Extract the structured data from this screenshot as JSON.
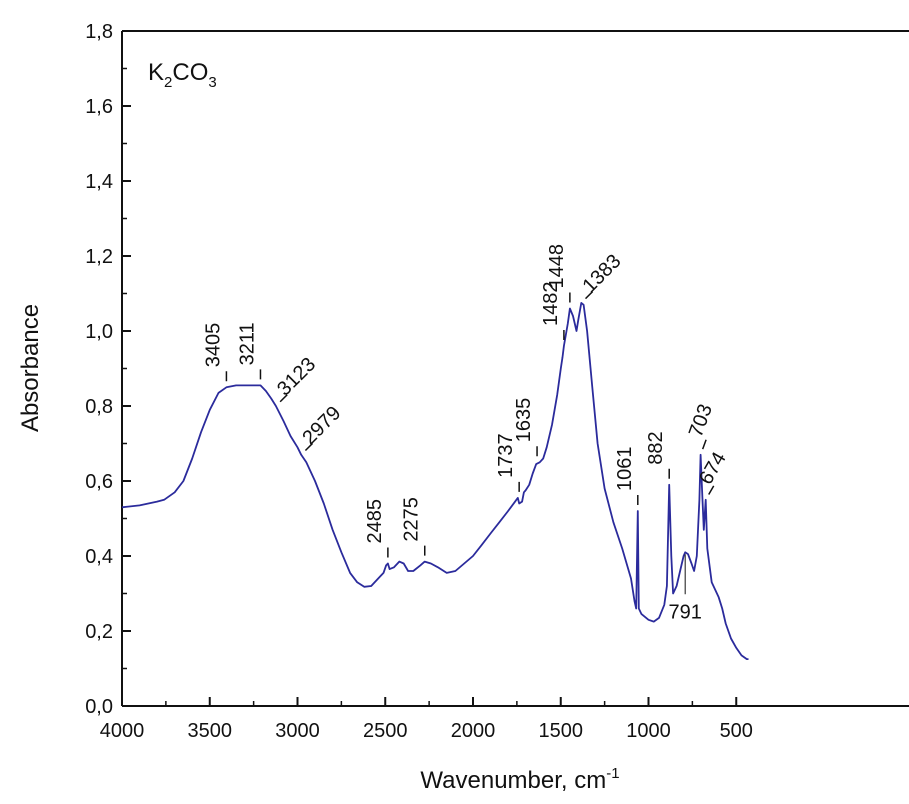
{
  "chart_data": {
    "type": "line",
    "title": "",
    "sample_label": {
      "base": "K",
      "sub1": "2",
      "mid": "CO",
      "sub2": "3"
    },
    "xlabel": "Wavenumber, cm",
    "xlabel_sup": "-1",
    "ylabel": "Absorbance",
    "xlim": [
      4000,
      430
    ],
    "ylim": [
      0.0,
      1.8
    ],
    "x_reversed": true,
    "grid": false,
    "x_ticks": [
      {
        "value": 4000,
        "label": "4000"
      },
      {
        "value": 3500,
        "label": "3500"
      },
      {
        "value": 3000,
        "label": "3000"
      },
      {
        "value": 2500,
        "label": "2500"
      },
      {
        "value": 2000,
        "label": "2000"
      },
      {
        "value": 1500,
        "label": "1500"
      },
      {
        "value": 1000,
        "label": "1000"
      },
      {
        "value": 500,
        "label": "500"
      }
    ],
    "y_ticks": [
      {
        "value": 0.0,
        "label": "0,0"
      },
      {
        "value": 0.2,
        "label": "0,2"
      },
      {
        "value": 0.4,
        "label": "0,4"
      },
      {
        "value": 0.6,
        "label": "0,6"
      },
      {
        "value": 0.8,
        "label": "0,8"
      },
      {
        "value": 1.0,
        "label": "1,0"
      },
      {
        "value": 1.2,
        "label": "1,2"
      },
      {
        "value": 1.4,
        "label": "1,4"
      },
      {
        "value": 1.6,
        "label": "1,6"
      },
      {
        "value": 1.8,
        "label": "1,8"
      }
    ],
    "series": [
      {
        "color": "#2b2b9c",
        "points": [
          [
            4000,
            0.53
          ],
          [
            3900,
            0.535
          ],
          [
            3800,
            0.545
          ],
          [
            3760,
            0.55
          ],
          [
            3700,
            0.57
          ],
          [
            3650,
            0.6
          ],
          [
            3600,
            0.66
          ],
          [
            3550,
            0.73
          ],
          [
            3500,
            0.79
          ],
          [
            3450,
            0.835
          ],
          [
            3405,
            0.85
          ],
          [
            3350,
            0.855
          ],
          [
            3300,
            0.855
          ],
          [
            3250,
            0.855
          ],
          [
            3211,
            0.855
          ],
          [
            3180,
            0.84
          ],
          [
            3150,
            0.82
          ],
          [
            3123,
            0.8
          ],
          [
            3080,
            0.76
          ],
          [
            3040,
            0.72
          ],
          [
            3000,
            0.69
          ],
          [
            2979,
            0.67
          ],
          [
            2950,
            0.65
          ],
          [
            2900,
            0.6
          ],
          [
            2850,
            0.54
          ],
          [
            2800,
            0.47
          ],
          [
            2750,
            0.41
          ],
          [
            2700,
            0.355
          ],
          [
            2660,
            0.33
          ],
          [
            2620,
            0.318
          ],
          [
            2580,
            0.32
          ],
          [
            2540,
            0.34
          ],
          [
            2510,
            0.355
          ],
          [
            2495,
            0.375
          ],
          [
            2485,
            0.38
          ],
          [
            2475,
            0.365
          ],
          [
            2450,
            0.37
          ],
          [
            2420,
            0.385
          ],
          [
            2395,
            0.38
          ],
          [
            2370,
            0.36
          ],
          [
            2340,
            0.36
          ],
          [
            2300,
            0.375
          ],
          [
            2275,
            0.385
          ],
          [
            2240,
            0.38
          ],
          [
            2200,
            0.37
          ],
          [
            2150,
            0.355
          ],
          [
            2100,
            0.36
          ],
          [
            2050,
            0.38
          ],
          [
            2000,
            0.4
          ],
          [
            1950,
            0.43
          ],
          [
            1900,
            0.46
          ],
          [
            1850,
            0.49
          ],
          [
            1800,
            0.52
          ],
          [
            1760,
            0.545
          ],
          [
            1745,
            0.555
          ],
          [
            1737,
            0.54
          ],
          [
            1720,
            0.545
          ],
          [
            1710,
            0.57
          ],
          [
            1700,
            0.575
          ],
          [
            1680,
            0.59
          ],
          [
            1660,
            0.62
          ],
          [
            1640,
            0.645
          ],
          [
            1620,
            0.65
          ],
          [
            1600,
            0.66
          ],
          [
            1580,
            0.69
          ],
          [
            1550,
            0.75
          ],
          [
            1520,
            0.83
          ],
          [
            1500,
            0.9
          ],
          [
            1490,
            0.93
          ],
          [
            1482,
            0.96
          ],
          [
            1460,
            1.02
          ],
          [
            1448,
            1.06
          ],
          [
            1430,
            1.04
          ],
          [
            1410,
            1.0
          ],
          [
            1400,
            1.03
          ],
          [
            1383,
            1.075
          ],
          [
            1370,
            1.07
          ],
          [
            1350,
            1.0
          ],
          [
            1320,
            0.85
          ],
          [
            1290,
            0.7
          ],
          [
            1250,
            0.58
          ],
          [
            1200,
            0.49
          ],
          [
            1150,
            0.42
          ],
          [
            1100,
            0.34
          ],
          [
            1080,
            0.28
          ],
          [
            1070,
            0.26
          ],
          [
            1061,
            0.52
          ],
          [
            1055,
            0.26
          ],
          [
            1040,
            0.245
          ],
          [
            1000,
            0.23
          ],
          [
            970,
            0.225
          ],
          [
            940,
            0.235
          ],
          [
            910,
            0.27
          ],
          [
            895,
            0.32
          ],
          [
            882,
            0.59
          ],
          [
            870,
            0.4
          ],
          [
            860,
            0.3
          ],
          [
            840,
            0.32
          ],
          [
            820,
            0.36
          ],
          [
            800,
            0.4
          ],
          [
            791,
            0.41
          ],
          [
            775,
            0.405
          ],
          [
            755,
            0.38
          ],
          [
            740,
            0.36
          ],
          [
            725,
            0.4
          ],
          [
            710,
            0.55
          ],
          [
            703,
            0.67
          ],
          [
            695,
            0.58
          ],
          [
            685,
            0.47
          ],
          [
            674,
            0.55
          ],
          [
            665,
            0.42
          ],
          [
            640,
            0.33
          ],
          [
            600,
            0.29
          ],
          [
            580,
            0.26
          ],
          [
            560,
            0.22
          ],
          [
            530,
            0.18
          ],
          [
            500,
            0.155
          ],
          [
            470,
            0.135
          ],
          [
            440,
            0.125
          ],
          [
            430,
            0.125
          ]
        ]
      }
    ],
    "annotations": [
      {
        "text": "3405",
        "x": 3405,
        "y": 0.85,
        "angle": -90
      },
      {
        "text": "3211",
        "x": 3211,
        "y": 0.855,
        "angle": -90
      },
      {
        "text": "3123",
        "x": 3123,
        "y": 0.8,
        "angle": -45
      },
      {
        "text": "2979",
        "x": 2979,
        "y": 0.67,
        "angle": -45
      },
      {
        "text": "2485",
        "x": 2485,
        "y": 0.38,
        "angle": -90
      },
      {
        "text": "2275",
        "x": 2275,
        "y": 0.385,
        "angle": -90
      },
      {
        "text": "1737",
        "x": 1737,
        "y": 0.555,
        "angle": -90
      },
      {
        "text": "1635",
        "x": 1635,
        "y": 0.65,
        "angle": -90
      },
      {
        "text": "1482",
        "x": 1482,
        "y": 0.96,
        "angle": -90
      },
      {
        "text": "1448",
        "x": 1448,
        "y": 1.06,
        "angle": -90
      },
      {
        "text": "1383",
        "x": 1383,
        "y": 1.075,
        "angle": -45
      },
      {
        "text": "1061",
        "x": 1061,
        "y": 0.52,
        "angle": -90
      },
      {
        "text": "882",
        "x": 882,
        "y": 0.59,
        "angle": -90
      },
      {
        "text": "703",
        "x": 703,
        "y": 0.67,
        "angle": -70
      },
      {
        "text": "674",
        "x": 674,
        "y": 0.55,
        "angle": -60
      },
      {
        "text": "791",
        "x": 791,
        "y": 0.41,
        "angle": 0
      }
    ]
  }
}
